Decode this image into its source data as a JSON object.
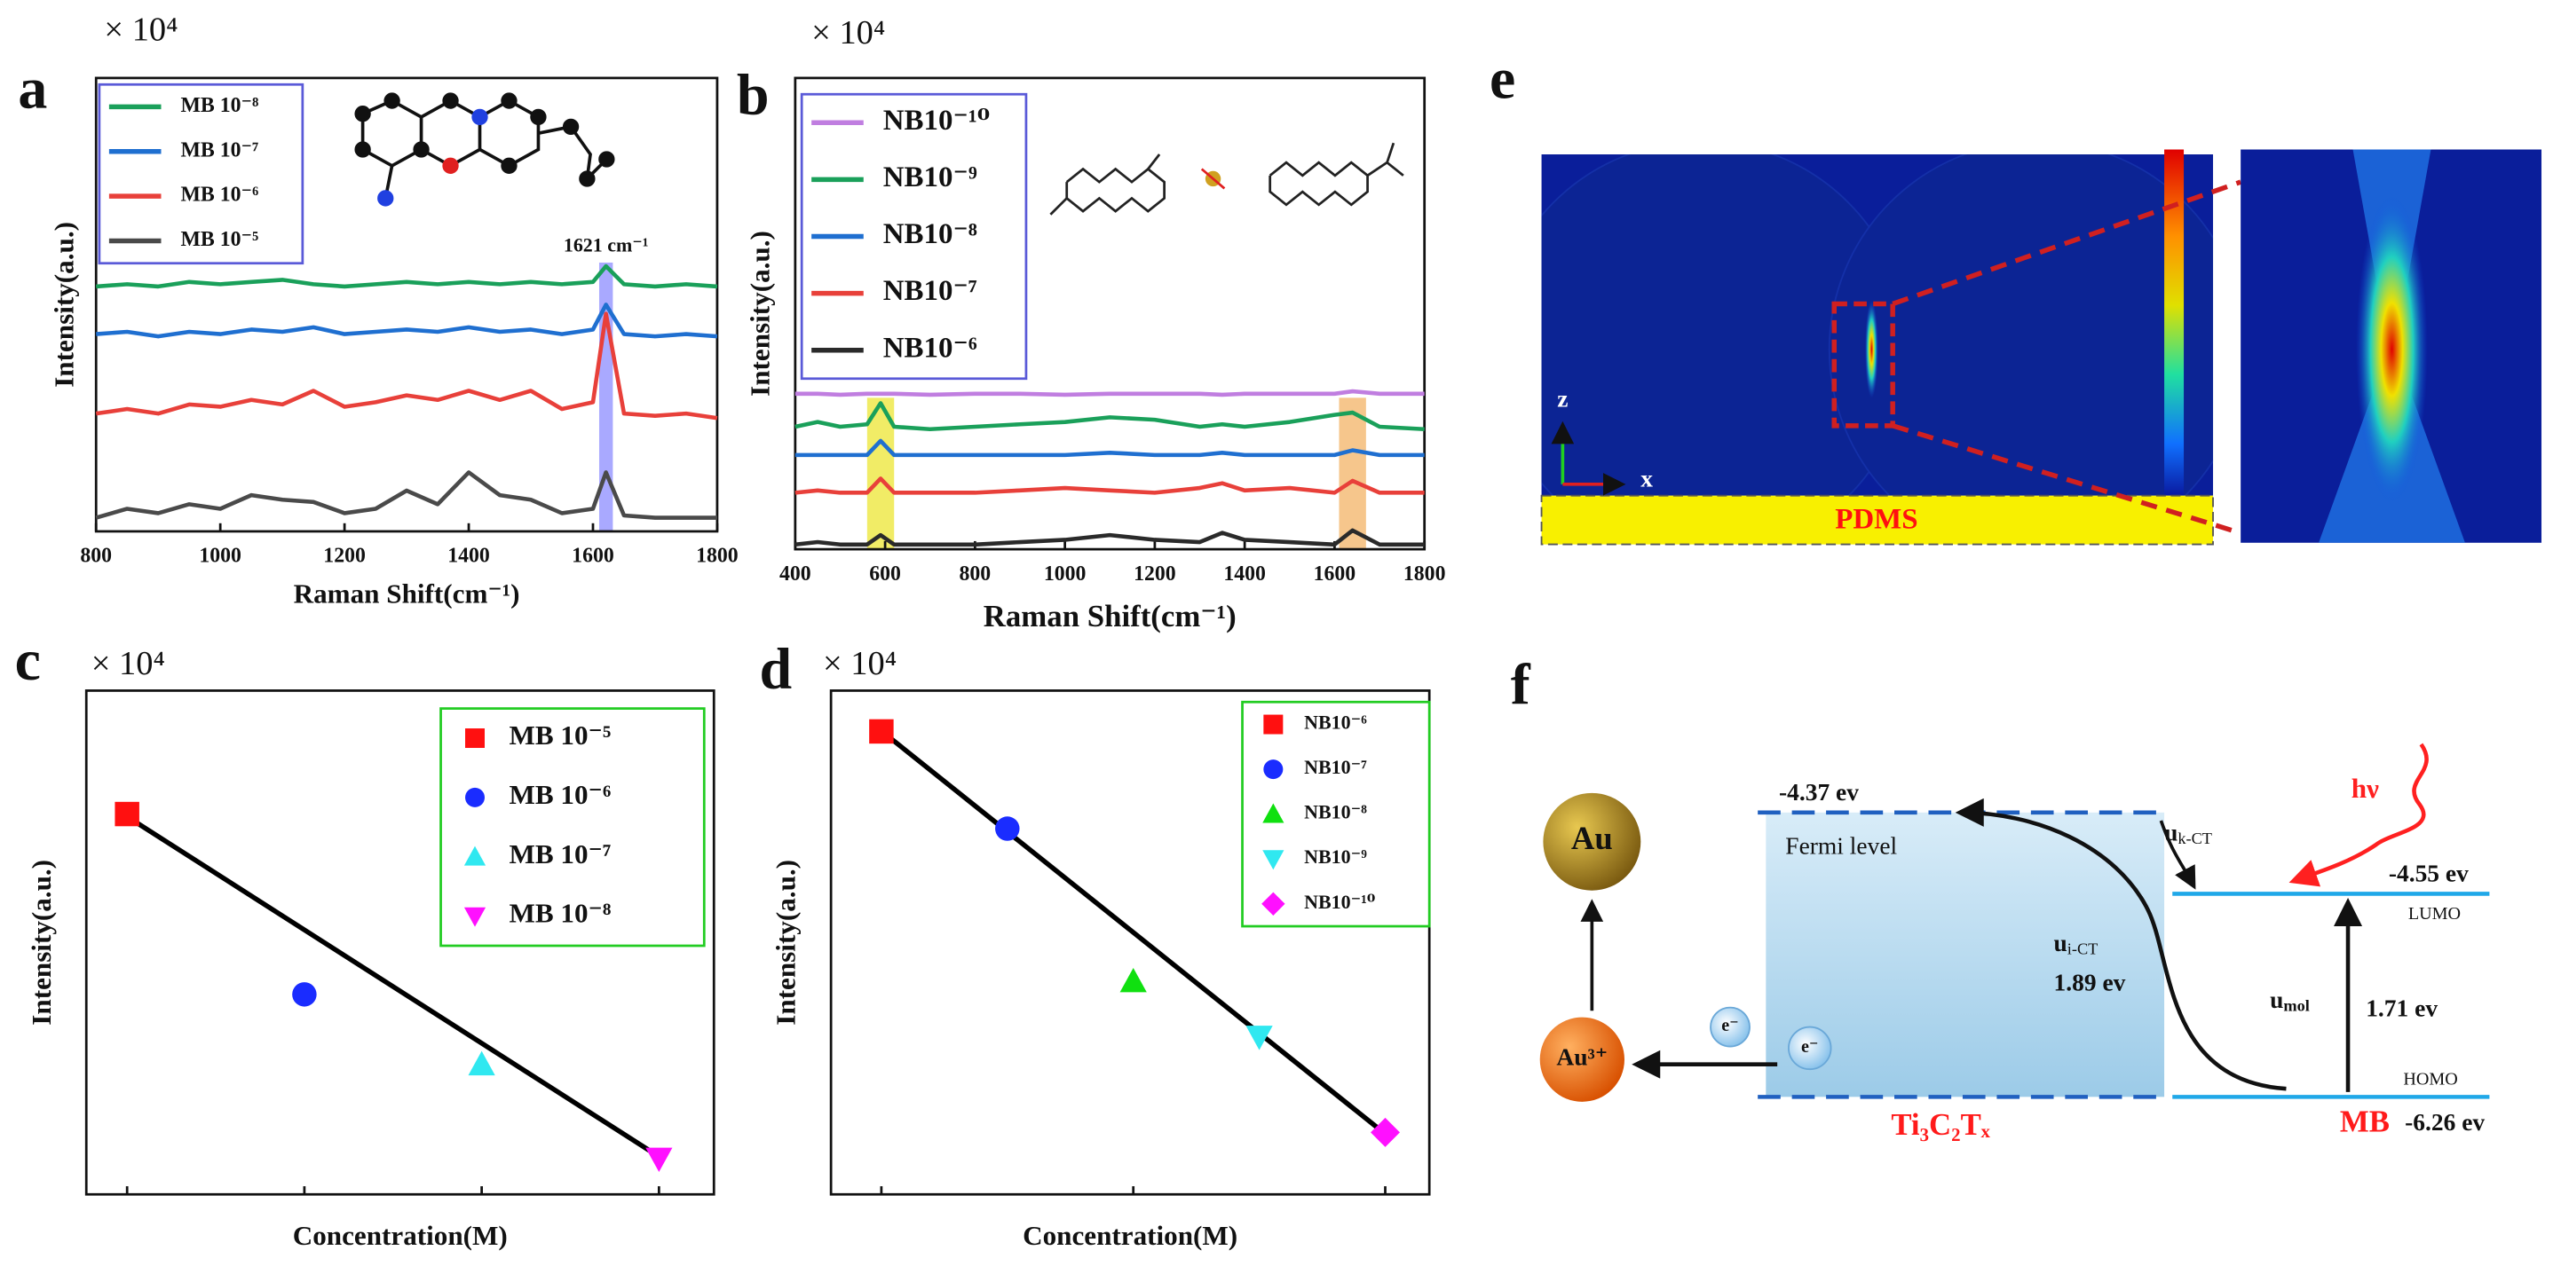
{
  "chart_data": [
    {
      "type": "line",
      "panel": "a",
      "multiplier": "× 10⁴",
      "xlabel": "Raman Shift(cm⁻¹)",
      "ylabel": "Intensity(a.u.)",
      "x": [
        800,
        850,
        900,
        950,
        1000,
        1050,
        1100,
        1150,
        1200,
        1250,
        1300,
        1350,
        1400,
        1450,
        1500,
        1550,
        1600,
        1621,
        1650,
        1700,
        1750,
        1800
      ],
      "series": [
        {
          "name": "MB 10⁻⁸",
          "color": "#1aa05a",
          "values": [
            5.4,
            5.45,
            5.4,
            5.5,
            5.45,
            5.5,
            5.55,
            5.45,
            5.4,
            5.45,
            5.5,
            5.45,
            5.5,
            5.45,
            5.5,
            5.45,
            5.5,
            5.85,
            5.45,
            5.4,
            5.45,
            5.4
          ]
        },
        {
          "name": "MB 10⁻⁷",
          "color": "#1f6fd0",
          "values": [
            4.35,
            4.4,
            4.3,
            4.4,
            4.35,
            4.45,
            4.4,
            4.5,
            4.35,
            4.4,
            4.45,
            4.4,
            4.5,
            4.4,
            4.45,
            4.35,
            4.45,
            5.0,
            4.35,
            4.3,
            4.35,
            4.3
          ]
        },
        {
          "name": "MB 10⁻⁶",
          "color": "#e8403a",
          "values": [
            2.6,
            2.7,
            2.6,
            2.8,
            2.75,
            2.9,
            2.8,
            3.1,
            2.75,
            2.85,
            3.0,
            2.9,
            3.1,
            2.9,
            3.1,
            2.7,
            2.85,
            4.8,
            2.6,
            2.55,
            2.6,
            2.5
          ]
        },
        {
          "name": "MB 10⁻⁵",
          "color": "#4a4a4a",
          "values": [
            0.3,
            0.5,
            0.4,
            0.6,
            0.5,
            0.8,
            0.7,
            0.65,
            0.4,
            0.5,
            0.9,
            0.6,
            1.3,
            0.8,
            0.7,
            0.4,
            0.5,
            1.3,
            0.35,
            0.3,
            0.3,
            0.3
          ]
        }
      ],
      "xlim": [
        800,
        1800
      ],
      "xticks": [
        800,
        1000,
        1200,
        1400,
        1600,
        1800
      ],
      "ylim": [
        0,
        10
      ],
      "highlights": [
        {
          "xrange": [
            1610,
            1632
          ],
          "color": "#7070ff"
        }
      ],
      "annotations": [
        {
          "text": "1621 cm⁻¹",
          "x": 1621,
          "y": 6.27
        }
      ],
      "legend": "top-left",
      "legend_frame_color": "#5a5ad8"
    },
    {
      "type": "line",
      "panel": "b",
      "multiplier": "× 10⁴",
      "xlabel": "Raman Shift(cm⁻¹)",
      "ylabel": "Intensity(a.u.)",
      "x": [
        400,
        450,
        500,
        560,
        590,
        620,
        700,
        800,
        900,
        1000,
        1100,
        1200,
        1300,
        1350,
        1400,
        1500,
        1600,
        1640,
        1700,
        1800
      ],
      "series": [
        {
          "name": "NB10⁻¹⁰",
          "color": "#c07ee0",
          "values": [
            3.3,
            3.3,
            3.28,
            3.3,
            3.3,
            3.3,
            3.28,
            3.3,
            3.3,
            3.28,
            3.3,
            3.3,
            3.3,
            3.28,
            3.3,
            3.3,
            3.3,
            3.35,
            3.3,
            3.3
          ]
        },
        {
          "name": "NB10⁻⁹",
          "color": "#1aa05a",
          "values": [
            2.6,
            2.7,
            2.6,
            2.65,
            3.1,
            2.6,
            2.55,
            2.6,
            2.65,
            2.7,
            2.8,
            2.75,
            2.6,
            2.65,
            2.6,
            2.7,
            2.85,
            2.9,
            2.6,
            2.55
          ]
        },
        {
          "name": "NB10⁻⁸",
          "color": "#1f6fd0",
          "values": [
            2.0,
            2.0,
            2.0,
            2.0,
            2.3,
            2.0,
            2.0,
            2.0,
            2.0,
            2.0,
            2.05,
            2.0,
            2.0,
            2.05,
            2.0,
            2.0,
            2.0,
            2.1,
            2.0,
            2.0
          ]
        },
        {
          "name": "NB10⁻⁷",
          "color": "#e8403a",
          "values": [
            1.2,
            1.25,
            1.2,
            1.2,
            1.5,
            1.2,
            1.2,
            1.2,
            1.25,
            1.3,
            1.25,
            1.2,
            1.3,
            1.4,
            1.25,
            1.3,
            1.2,
            1.45,
            1.2,
            1.2
          ]
        },
        {
          "name": "NB10⁻⁶",
          "color": "#2a2a2a",
          "values": [
            0.1,
            0.15,
            0.1,
            0.1,
            0.3,
            0.1,
            0.1,
            0.1,
            0.15,
            0.2,
            0.3,
            0.2,
            0.15,
            0.35,
            0.2,
            0.15,
            0.1,
            0.4,
            0.1,
            0.1
          ]
        }
      ],
      "xlim": [
        400,
        1800
      ],
      "xticks": [
        400,
        600,
        800,
        1000,
        1200,
        1400,
        1600,
        1800
      ],
      "ylim": [
        0,
        10
      ],
      "highlights": [
        {
          "xrange": [
            560,
            620
          ],
          "color": "#e8e000"
        },
        {
          "xrange": [
            1610,
            1670
          ],
          "color": "#f0a040"
        }
      ],
      "legend": "top-left",
      "legend_frame_color": "#5a5ad8"
    },
    {
      "type": "scatter",
      "panel": "c",
      "multiplier": "× 10⁴",
      "xlabel": "Concentration(M)",
      "ylabel": "Intensity(a.u.)",
      "series": [
        {
          "name": "MB 10⁻⁵",
          "color": "#ff1010",
          "marker": "square",
          "x": [
            1
          ],
          "values": [
            7.55
          ]
        },
        {
          "name": "MB 10⁻⁶",
          "color": "#1a2cff",
          "marker": "circle",
          "x": [
            2
          ],
          "values": [
            3.97
          ]
        },
        {
          "name": "MB 10⁻⁷",
          "color": "#30e8f0",
          "marker": "triangle",
          "x": [
            3
          ],
          "values": [
            2.58
          ]
        },
        {
          "name": "MB 10⁻⁸",
          "color": "#ff10ff",
          "marker": "triangle-down",
          "x": [
            4
          ],
          "values": [
            0.71
          ]
        }
      ],
      "fit": {
        "x": [
          1,
          4
        ],
        "values": [
          7.5,
          0.75
        ],
        "color": "#000000"
      },
      "xlim": [
        0.77,
        4.31
      ],
      "xticks": [
        1,
        2,
        3,
        4
      ],
      "xtick_labels": false,
      "ylim": [
        0,
        10
      ],
      "legend": "top-right",
      "legend_frame_color": "#22cc22"
    },
    {
      "type": "scatter",
      "panel": "d",
      "multiplier": "× 10⁴",
      "xlabel": "Concentration(M)",
      "ylabel": "Intensity(a.u.)",
      "series": [
        {
          "name": "NB10⁻⁶",
          "color": "#ff1010",
          "marker": "square",
          "x": [
            1
          ],
          "values": [
            9.19
          ]
        },
        {
          "name": "NB10⁻⁷",
          "color": "#1a2cff",
          "marker": "circle",
          "x": [
            2
          ],
          "values": [
            7.26
          ]
        },
        {
          "name": "NB10⁻⁸",
          "color": "#10e010",
          "marker": "triangle",
          "x": [
            3
          ],
          "values": [
            4.23
          ]
        },
        {
          "name": "NB10⁻⁹",
          "color": "#30e8f0",
          "marker": "triangle-down",
          "x": [
            4
          ],
          "values": [
            3.13
          ]
        },
        {
          "name": "NB10⁻¹⁰",
          "color": "#ff10ff",
          "marker": "diamond",
          "x": [
            5
          ],
          "values": [
            1.23
          ]
        }
      ],
      "fit": {
        "x": [
          1,
          5
        ],
        "values": [
          9.2,
          1.2
        ],
        "color": "#000000"
      },
      "xlim": [
        0.6,
        5.35
      ],
      "xticks": [
        1,
        3,
        5
      ],
      "xtick_labels": false,
      "ylim": [
        0,
        10
      ],
      "legend": "top-right",
      "legend_frame_color": "#22cc22"
    }
  ],
  "diagram_e": {
    "panel": "e",
    "axis_z": "z",
    "axis_x": "x",
    "substrate": "PDMS"
  },
  "diagram_f": {
    "panel": "f",
    "metal": "Au",
    "ion": "Au³⁺",
    "electron": "e⁻",
    "fermi_energy": "-4.37 ev",
    "fermi_label": "Fermi level",
    "ict": {
      "symbol": "u",
      "sub": "i-CT",
      "energy": "1.89 ev"
    },
    "kct": {
      "symbol": "u",
      "sub": "k-CT"
    },
    "light": "hν",
    "lumo_energy": "-4.55 ev",
    "lumo": "LUMO",
    "mol": {
      "symbol": "u",
      "sub": "mol",
      "energy": "1.71 ev"
    },
    "homo": "HOMO",
    "molecule": "MB",
    "homo_energy": "-6.26 ev",
    "substrate": "Ti₃C₂Tₓ"
  }
}
